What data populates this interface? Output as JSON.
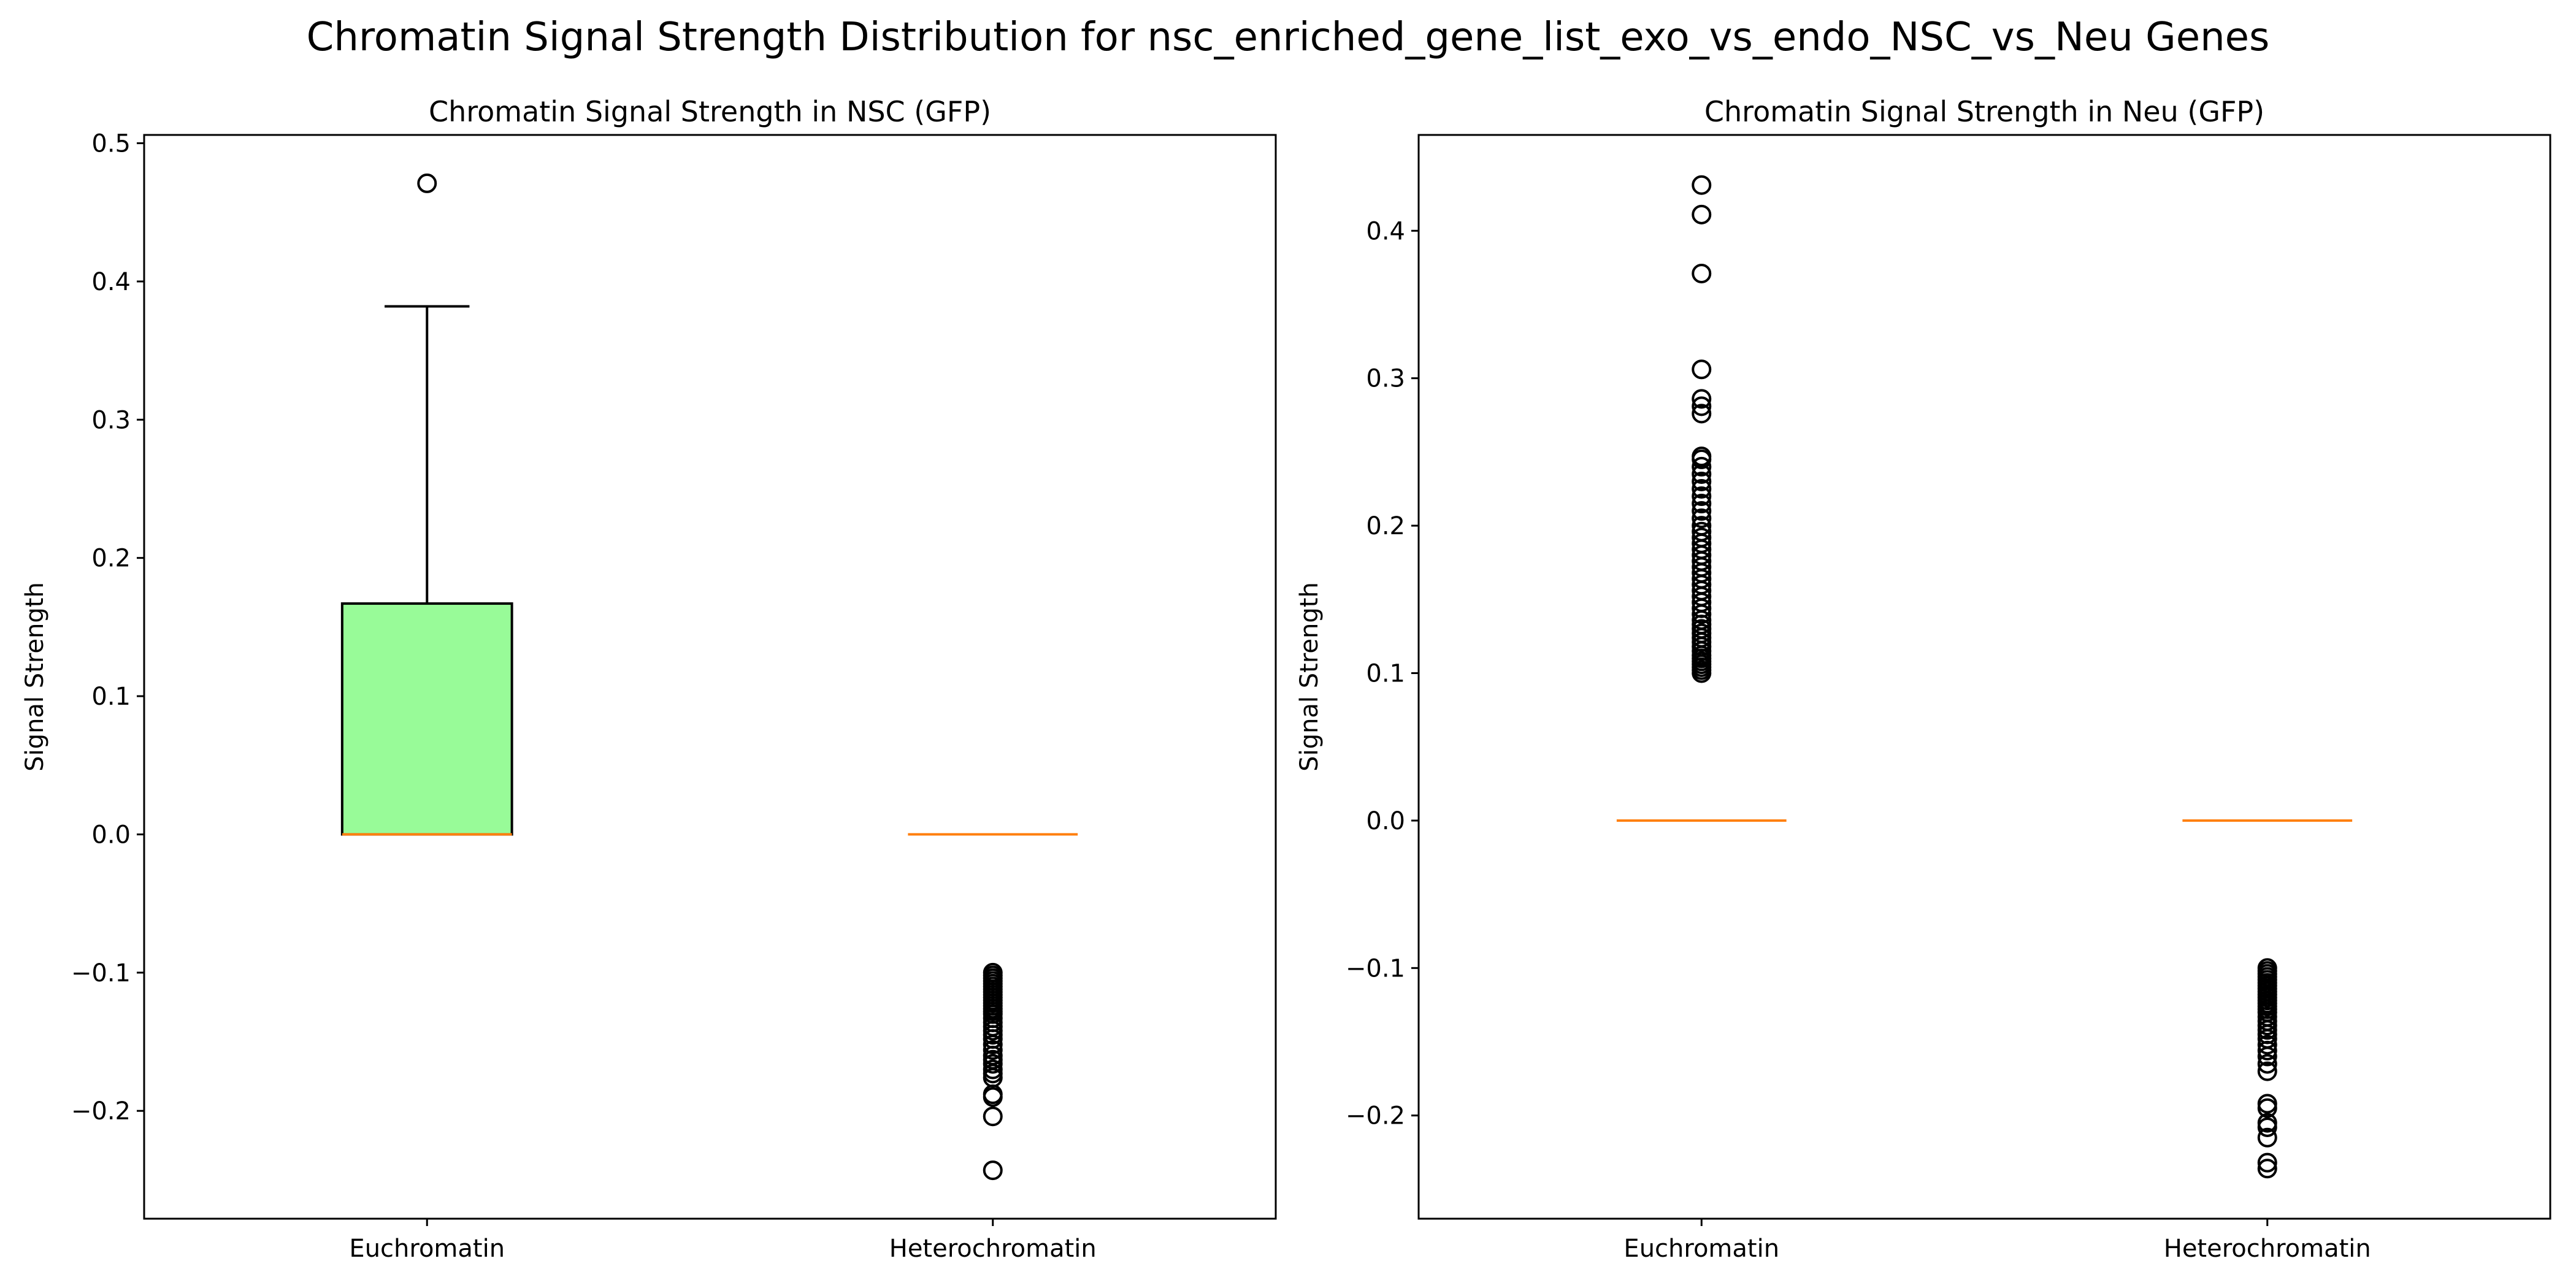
{
  "suptitle": "Chromatin Signal Strength Distribution for nsc_enriched_gene_list_exo_vs_endo_NSC_vs_Neu Genes",
  "chart_data": [
    {
      "type": "box",
      "title": "Chromatin Signal Strength in NSC (GFP)",
      "xlabel": "",
      "ylabel": "Signal Strength",
      "categories": [
        "Euchromatin",
        "Heterochromatin"
      ],
      "ylim": [
        -0.278,
        0.506
      ],
      "yticks": [
        -0.2,
        -0.1,
        0.0,
        0.1,
        0.2,
        0.3,
        0.4,
        0.5
      ],
      "grid": false,
      "boxes": [
        {
          "category": "Euchromatin",
          "q1": 0.0,
          "median": 0.0,
          "q3": 0.167,
          "whisker_low": 0.0,
          "whisker_high": 0.382,
          "fill": "#98fb98",
          "outliers": [
            0.471
          ]
        },
        {
          "category": "Heterochromatin",
          "q1": 0.0,
          "median": 0.0,
          "q3": 0.0,
          "whisker_low": 0.0,
          "whisker_high": 0.0,
          "fill": "#87ceeb",
          "outliers": [
            -0.1,
            -0.102,
            -0.104,
            -0.106,
            -0.108,
            -0.11,
            -0.112,
            -0.114,
            -0.116,
            -0.118,
            -0.12,
            -0.122,
            -0.124,
            -0.126,
            -0.128,
            -0.13,
            -0.133,
            -0.136,
            -0.139,
            -0.142,
            -0.145,
            -0.148,
            -0.152,
            -0.156,
            -0.16,
            -0.163,
            -0.166,
            -0.17,
            -0.173,
            -0.176,
            -0.188,
            -0.19,
            -0.204,
            -0.243
          ]
        }
      ],
      "colors": {
        "median": "#ff7f0e",
        "edge": "#000000"
      }
    },
    {
      "type": "box",
      "title": "Chromatin Signal Strength in Neu (GFP)",
      "xlabel": "",
      "ylabel": "Signal Strength",
      "categories": [
        "Euchromatin",
        "Heterochromatin"
      ],
      "ylim": [
        -0.27,
        0.465
      ],
      "yticks": [
        -0.2,
        -0.1,
        0.0,
        0.1,
        0.2,
        0.3,
        0.4
      ],
      "grid": false,
      "boxes": [
        {
          "category": "Euchromatin",
          "q1": 0.0,
          "median": 0.0,
          "q3": 0.0,
          "whisker_low": 0.0,
          "whisker_high": 0.0,
          "fill": "#98fb98",
          "outliers": [
            0.1,
            0.102,
            0.104,
            0.106,
            0.108,
            0.11,
            0.112,
            0.115,
            0.118,
            0.121,
            0.124,
            0.127,
            0.13,
            0.133,
            0.136,
            0.14,
            0.144,
            0.148,
            0.152,
            0.156,
            0.16,
            0.164,
            0.168,
            0.172,
            0.176,
            0.18,
            0.184,
            0.188,
            0.192,
            0.196,
            0.2,
            0.205,
            0.21,
            0.215,
            0.22,
            0.225,
            0.23,
            0.235,
            0.24,
            0.245,
            0.247,
            0.276,
            0.281,
            0.286,
            0.306,
            0.371,
            0.411,
            0.431
          ]
        },
        {
          "category": "Heterochromatin",
          "q1": 0.0,
          "median": 0.0,
          "q3": 0.0,
          "whisker_low": 0.0,
          "whisker_high": 0.0,
          "fill": "#87ceeb",
          "outliers": [
            -0.1,
            -0.102,
            -0.104,
            -0.106,
            -0.108,
            -0.11,
            -0.112,
            -0.114,
            -0.116,
            -0.118,
            -0.12,
            -0.122,
            -0.124,
            -0.126,
            -0.128,
            -0.13,
            -0.133,
            -0.136,
            -0.139,
            -0.142,
            -0.145,
            -0.148,
            -0.152,
            -0.156,
            -0.16,
            -0.165,
            -0.17,
            -0.192,
            -0.195,
            -0.205,
            -0.208,
            -0.215,
            -0.232,
            -0.236
          ]
        }
      ],
      "colors": {
        "median": "#ff7f0e",
        "edge": "#000000"
      }
    }
  ]
}
